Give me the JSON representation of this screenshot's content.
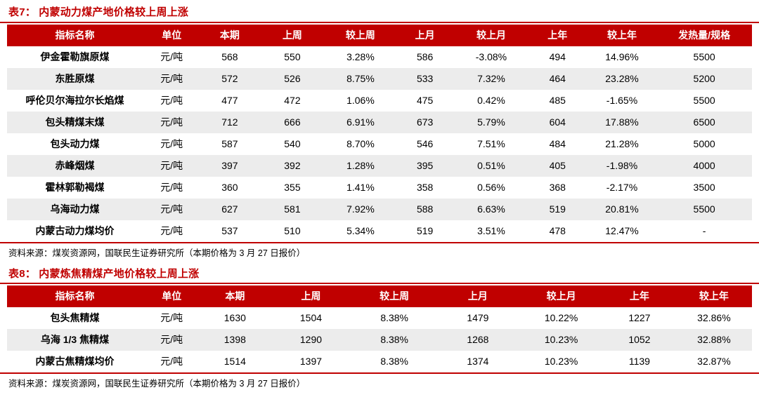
{
  "colors": {
    "accent": "#C00000",
    "row_alt": "#ECECEC",
    "header_text": "#FFFFFF"
  },
  "tables": [
    {
      "title": "表7：  内蒙动力煤产地价格较上周上涨",
      "columns": [
        "指标名称",
        "单位",
        "本期",
        "上周",
        "较上周",
        "上月",
        "较上月",
        "上年",
        "较上年",
        "发热量/规格"
      ],
      "rows": [
        [
          "伊金霍勒旗原煤",
          "元/吨",
          "568",
          "550",
          "3.28%",
          "586",
          "-3.08%",
          "494",
          "14.96%",
          "5500"
        ],
        [
          "东胜原煤",
          "元/吨",
          "572",
          "526",
          "8.75%",
          "533",
          "7.32%",
          "464",
          "23.28%",
          "5200"
        ],
        [
          "呼伦贝尔海拉尔长焰煤",
          "元/吨",
          "477",
          "472",
          "1.06%",
          "475",
          "0.42%",
          "485",
          "-1.65%",
          "5500"
        ],
        [
          "包头精煤末煤",
          "元/吨",
          "712",
          "666",
          "6.91%",
          "673",
          "5.79%",
          "604",
          "17.88%",
          "6500"
        ],
        [
          "包头动力煤",
          "元/吨",
          "587",
          "540",
          "8.70%",
          "546",
          "7.51%",
          "484",
          "21.28%",
          "5000"
        ],
        [
          "赤峰烟煤",
          "元/吨",
          "397",
          "392",
          "1.28%",
          "395",
          "0.51%",
          "405",
          "-1.98%",
          "4000"
        ],
        [
          "霍林郭勒褐煤",
          "元/吨",
          "360",
          "355",
          "1.41%",
          "358",
          "0.56%",
          "368",
          "-2.17%",
          "3500"
        ],
        [
          "乌海动力煤",
          "元/吨",
          "627",
          "581",
          "7.92%",
          "588",
          "6.63%",
          "519",
          "20.81%",
          "5500"
        ],
        [
          "内蒙古动力煤均价",
          "元/吨",
          "537",
          "510",
          "5.34%",
          "519",
          "3.51%",
          "478",
          "12.47%",
          "-"
        ]
      ],
      "source": "资料来源：煤炭资源网，国联民生证券研究所（本期价格为 3 月 27 日报价）"
    },
    {
      "title": "表8：  内蒙炼焦精煤产地价格较上周上涨",
      "columns": [
        "指标名称",
        "单位",
        "本期",
        "上周",
        "较上周",
        "上月",
        "较上月",
        "上年",
        "较上年"
      ],
      "rows": [
        [
          "包头焦精煤",
          "元/吨",
          "1630",
          "1504",
          "8.38%",
          "1479",
          "10.22%",
          "1227",
          "32.86%"
        ],
        [
          "乌海 1/3 焦精煤",
          "元/吨",
          "1398",
          "1290",
          "8.38%",
          "1268",
          "10.23%",
          "1052",
          "32.88%"
        ],
        [
          "内蒙古焦精煤均价",
          "元/吨",
          "1514",
          "1397",
          "8.38%",
          "1374",
          "10.23%",
          "1139",
          "32.87%"
        ]
      ],
      "source": "资料来源：煤炭资源网，国联民生证券研究所（本期价格为 3 月 27 日报价）"
    }
  ]
}
